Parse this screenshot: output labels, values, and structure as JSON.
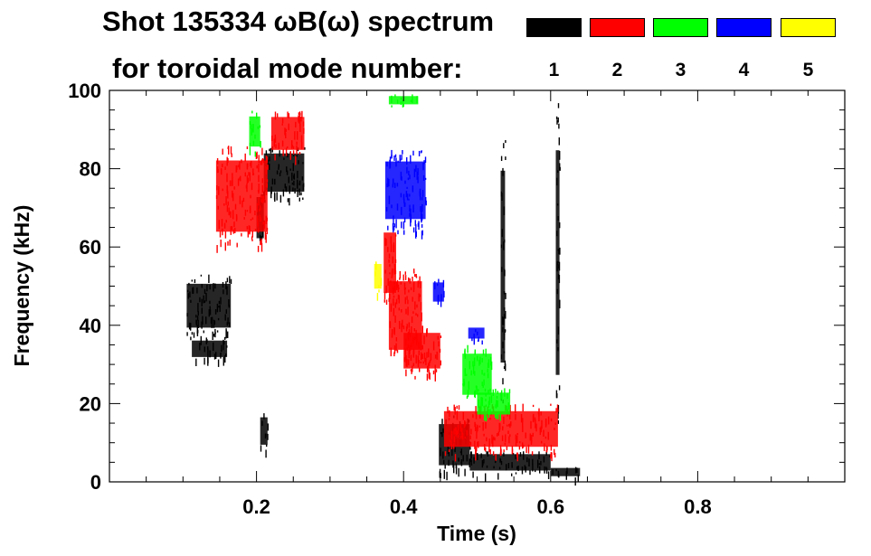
{
  "header": {
    "title": "Shot 135334 ωB(ω) spectrum",
    "subtitle": "for toroidal mode number:"
  },
  "legend": [
    {
      "label": "1",
      "color": "#000000"
    },
    {
      "label": "2",
      "color": "#ff0000"
    },
    {
      "label": "3",
      "color": "#00ff00"
    },
    {
      "label": "4",
      "color": "#0000ff"
    },
    {
      "label": "5",
      "color": "#ffff00"
    }
  ],
  "chart_data": {
    "type": "heatmap",
    "title": "Shot 135334 ωB(ω) spectrum",
    "xlabel": "Time (s)",
    "ylabel": "Frequency (kHz)",
    "xlim": [
      0.0,
      1.0
    ],
    "ylim": [
      0,
      100
    ],
    "xticks": [
      0.2,
      0.4,
      0.6,
      0.8
    ],
    "yticks": [
      0,
      20,
      40,
      60,
      80,
      100
    ],
    "legend_placement": "top",
    "series": [
      {
        "name": "1",
        "color": "#000000",
        "regions": [
          {
            "t": [
              0.105,
              0.165
            ],
            "f": [
              37,
              53
            ]
          },
          {
            "t": [
              0.112,
              0.16
            ],
            "f": [
              31,
              37
            ]
          },
          {
            "t": [
              0.2,
              0.21
            ],
            "f": [
              60,
              75
            ]
          },
          {
            "t": [
              0.21,
              0.265
            ],
            "f": [
              72,
              86
            ]
          },
          {
            "t": [
              0.205,
              0.215
            ],
            "f": [
              8,
              18
            ]
          },
          {
            "t": [
              0.448,
              0.49
            ],
            "f": [
              2,
              17
            ]
          },
          {
            "t": [
              0.49,
              0.6
            ],
            "f": [
              2,
              8
            ]
          },
          {
            "t": [
              0.6,
              0.64
            ],
            "f": [
              1,
              4
            ]
          },
          {
            "t": [
              0.532,
              0.538
            ],
            "f": [
              20,
              90
            ]
          },
          {
            "t": [
              0.607,
              0.612
            ],
            "f": [
              15,
              97
            ]
          }
        ]
      },
      {
        "name": "2",
        "color": "#ff0000",
        "regions": [
          {
            "t": [
              0.145,
              0.215
            ],
            "f": [
              60,
              86
            ]
          },
          {
            "t": [
              0.22,
              0.265
            ],
            "f": [
              83,
              95
            ]
          },
          {
            "t": [
              0.373,
              0.39
            ],
            "f": [
              45,
              67
            ]
          },
          {
            "t": [
              0.38,
              0.425
            ],
            "f": [
              30,
              55
            ]
          },
          {
            "t": [
              0.4,
              0.45
            ],
            "f": [
              27,
              40
            ]
          },
          {
            "t": [
              0.455,
              0.61
            ],
            "f": [
              7,
              20
            ]
          }
        ]
      },
      {
        "name": "3",
        "color": "#00ff00",
        "regions": [
          {
            "t": [
              0.19,
              0.205
            ],
            "f": [
              84,
              95
            ]
          },
          {
            "t": [
              0.48,
              0.52
            ],
            "f": [
              20,
              35
            ]
          },
          {
            "t": [
              0.5,
              0.545
            ],
            "f": [
              16,
              24
            ]
          },
          {
            "t": [
              0.38,
              0.42
            ],
            "f": [
              96,
              99
            ]
          }
        ]
      },
      {
        "name": "4",
        "color": "#0000ff",
        "regions": [
          {
            "t": [
              0.375,
              0.43
            ],
            "f": [
              64,
              85
            ]
          },
          {
            "t": [
              0.44,
              0.455
            ],
            "f": [
              45,
              52
            ]
          },
          {
            "t": [
              0.488,
              0.51
            ],
            "f": [
              36,
              40
            ]
          }
        ]
      },
      {
        "name": "5",
        "color": "#ffff00",
        "regions": [
          {
            "t": [
              0.36,
              0.37
            ],
            "f": [
              48,
              57
            ]
          }
        ]
      }
    ]
  }
}
